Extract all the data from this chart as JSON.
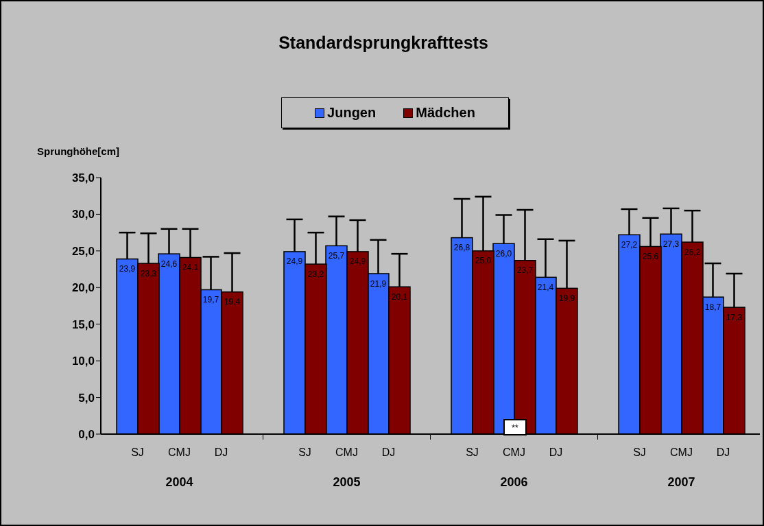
{
  "chart_data": {
    "type": "bar",
    "title": "Standardsprungkrafttests",
    "ylabel": "Sprunghöhe[cm]",
    "categories": [
      "SJ",
      "CMJ",
      "DJ",
      null,
      "SJ",
      "CMJ",
      "DJ",
      null,
      "SJ",
      "CMJ",
      "DJ",
      null,
      "SJ",
      "CMJ",
      "DJ"
    ],
    "series": [
      {
        "name": "Jungen",
        "color": "#3366ff",
        "values": [
          23.9,
          24.6,
          19.7,
          null,
          24.9,
          25.7,
          21.9,
          null,
          26.8,
          26.0,
          21.4,
          null,
          27.2,
          27.3,
          18.7
        ],
        "errors": [
          [
            23.9,
            27.5
          ],
          [
            24.6,
            28.0
          ],
          [
            19.7,
            24.2
          ],
          null,
          [
            24.9,
            29.3
          ],
          [
            25.7,
            29.7
          ],
          [
            21.9,
            26.5
          ],
          null,
          [
            26.8,
            32.1
          ],
          [
            26.0,
            29.9
          ],
          [
            21.4,
            26.6
          ],
          null,
          [
            27.2,
            30.7
          ],
          [
            27.3,
            30.8
          ],
          [
            18.7,
            23.3
          ]
        ],
        "value_labels": [
          "23,9",
          "24,6",
          "19,7",
          null,
          "24,9",
          "25,7",
          "21,9",
          null,
          "26,8",
          "26,0",
          "21,4",
          null,
          "27,2",
          "27,3",
          "18,7"
        ]
      },
      {
        "name": "Mädchen",
        "color": "#800000",
        "values": [
          23.3,
          24.1,
          19.4,
          null,
          23.2,
          24.9,
          20.1,
          null,
          25.0,
          23.7,
          19.9,
          null,
          25.6,
          26.2,
          17.3
        ],
        "errors": [
          [
            23.3,
            27.4
          ],
          [
            24.1,
            28.0
          ],
          [
            19.4,
            24.7
          ],
          null,
          [
            23.2,
            27.5
          ],
          [
            24.9,
            29.2
          ],
          [
            20.1,
            24.6
          ],
          null,
          [
            25.0,
            32.4
          ],
          [
            23.7,
            30.6
          ],
          [
            19.9,
            26.4
          ],
          null,
          [
            25.6,
            29.5
          ],
          [
            26.2,
            30.5
          ],
          [
            17.3,
            21.9
          ]
        ],
        "value_labels": [
          "23,3",
          "24,1",
          "19,4",
          null,
          "23,2",
          "24,9",
          "20,1",
          null,
          "25,0",
          "23,7",
          "19,9",
          null,
          "25,6",
          "26,2",
          "17,3"
        ]
      }
    ],
    "ylim": [
      0,
      35
    ],
    "yticks": [
      {
        "value": 0,
        "label": "0,0"
      },
      {
        "value": 5,
        "label": "5,0"
      },
      {
        "value": 10,
        "label": "10,0"
      },
      {
        "value": 15,
        "label": "15,0"
      },
      {
        "value": 20,
        "label": "20,0"
      },
      {
        "value": 25,
        "label": "25,0"
      },
      {
        "value": 30,
        "label": "30,0"
      },
      {
        "value": 35,
        "label": "35,0"
      }
    ],
    "annotations": [
      "2004",
      "2005",
      "2006",
      "2007",
      "**"
    ],
    "grid": false,
    "legend": "top"
  }
}
